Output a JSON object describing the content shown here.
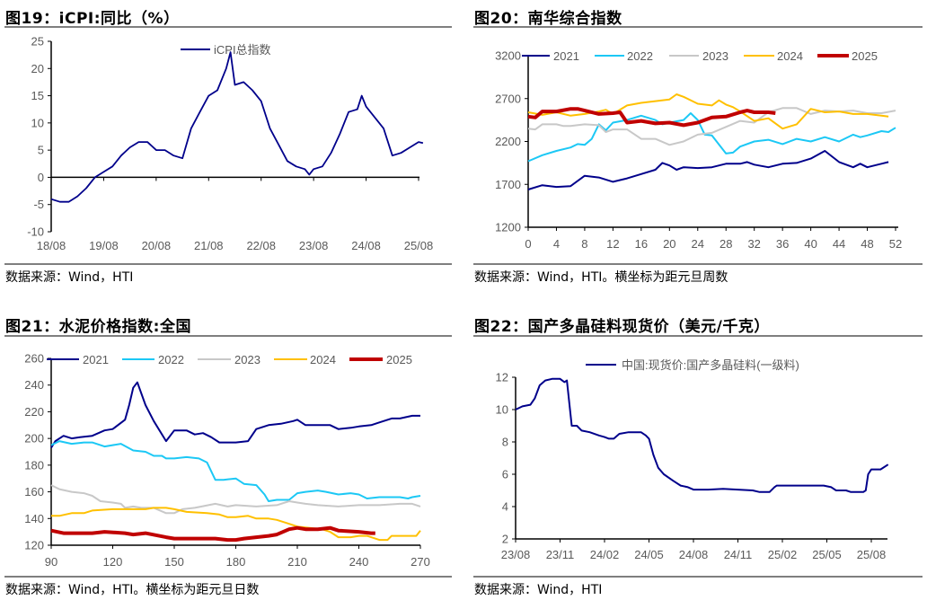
{
  "chart_data": [
    {
      "type": "line",
      "title": "图19：iCPI:同比（%）",
      "source": "数据来源：Wind，HTI",
      "ylim": [
        -10,
        25
      ],
      "yticks": [
        "25",
        "20",
        "15",
        "10",
        "5",
        "0",
        "-5",
        "-10"
      ],
      "xticks": [
        "18/08",
        "19/08",
        "20/08",
        "21/08",
        "22/08",
        "23/08",
        "24/08",
        "25/08"
      ],
      "legend_position": "top-center",
      "series": [
        {
          "name": "iCPI总指数",
          "color": "#00008B",
          "x": [
            "2018-08",
            "2018-10",
            "2018-12",
            "2019-02",
            "2019-04",
            "2019-06",
            "2019-08",
            "2019-10",
            "2019-12",
            "2020-02",
            "2020-04",
            "2020-06",
            "2020-08",
            "2020-10",
            "2020-12",
            "2021-02",
            "2021-04",
            "2021-06",
            "2021-08",
            "2021-10",
            "2021-12",
            "2022-01",
            "2022-02",
            "2022-04",
            "2022-06",
            "2022-08",
            "2022-10",
            "2022-12",
            "2023-02",
            "2023-04",
            "2023-06",
            "2023-07",
            "2023-08",
            "2023-10",
            "2023-12",
            "2024-02",
            "2024-04",
            "2024-06",
            "2024-07",
            "2024-08",
            "2024-10",
            "2024-12",
            "2025-02",
            "2025-04",
            "2025-06",
            "2025-08",
            "2025-09"
          ],
          "values": [
            -4,
            -4.5,
            -4.5,
            -3.5,
            -2,
            0,
            1,
            2,
            4,
            5.5,
            6.5,
            6.5,
            5,
            5,
            4,
            3.5,
            9,
            12,
            15,
            16,
            20,
            23,
            17,
            17.5,
            16,
            14,
            9,
            6,
            3,
            2,
            1.5,
            0.5,
            1.5,
            2,
            4.5,
            8,
            12,
            12.5,
            15,
            13,
            11,
            9,
            4,
            4.5,
            5.5,
            6.5,
            6.3
          ]
        }
      ]
    },
    {
      "type": "line",
      "title": "图20：南华综合指数",
      "source": "数据来源：Wind，HTI。横坐标为距元旦周数",
      "ylim": [
        1200,
        3200
      ],
      "yticks": [
        "3200",
        "2700",
        "2200",
        "1700",
        "1200"
      ],
      "xlim": [
        0,
        52
      ],
      "xticks": [
        "0",
        "4",
        "8",
        "12",
        "16",
        "20",
        "24",
        "28",
        "32",
        "36",
        "40",
        "44",
        "48",
        "52"
      ],
      "legend_position": "top",
      "series": [
        {
          "name": "2021",
          "color": "#00008B",
          "width": 2,
          "x": [
            0,
            2,
            4,
            6,
            8,
            10,
            12,
            14,
            16,
            18,
            19,
            20,
            21,
            22,
            24,
            26,
            28,
            30,
            31,
            32,
            34,
            36,
            38,
            40,
            42,
            44,
            46,
            47,
            48,
            50,
            51
          ],
          "values": [
            1640,
            1690,
            1670,
            1680,
            1800,
            1780,
            1730,
            1770,
            1820,
            1870,
            1950,
            1920,
            1870,
            1900,
            1890,
            1900,
            1940,
            1940,
            1960,
            1930,
            1900,
            1940,
            1950,
            2000,
            2090,
            1960,
            1900,
            1940,
            1900,
            1940,
            1960
          ]
        },
        {
          "name": "2022",
          "color": "#1CC8F5",
          "width": 2,
          "x": [
            0,
            2,
            4,
            6,
            7,
            8,
            9,
            10,
            11,
            12,
            14,
            16,
            18,
            19,
            20,
            22,
            23,
            24,
            25,
            26,
            28,
            29,
            30,
            32,
            34,
            36,
            38,
            40,
            42,
            44,
            46,
            47,
            48,
            50,
            51,
            52
          ],
          "values": [
            1970,
            2040,
            2090,
            2130,
            2170,
            2160,
            2230,
            2400,
            2330,
            2420,
            2450,
            2500,
            2450,
            2400,
            2420,
            2450,
            2530,
            2450,
            2280,
            2270,
            2060,
            2070,
            2140,
            2200,
            2220,
            2170,
            2230,
            2200,
            2250,
            2200,
            2280,
            2250,
            2270,
            2320,
            2310,
            2360
          ]
        },
        {
          "name": "2023",
          "color": "#C8C8C8",
          "width": 2,
          "x": [
            0,
            1,
            2,
            4,
            5,
            6,
            8,
            10,
            11,
            12,
            14,
            16,
            18,
            20,
            22,
            24,
            26,
            28,
            30,
            32,
            34,
            36,
            38,
            40,
            42,
            44,
            46,
            48,
            50,
            52
          ],
          "values": [
            2350,
            2340,
            2400,
            2400,
            2380,
            2380,
            2400,
            2390,
            2310,
            2340,
            2340,
            2230,
            2230,
            2160,
            2200,
            2280,
            2300,
            2370,
            2440,
            2420,
            2540,
            2590,
            2590,
            2520,
            2560,
            2550,
            2560,
            2530,
            2530,
            2560
          ]
        },
        {
          "name": "2024",
          "color": "#FFC000",
          "width": 2,
          "x": [
            0,
            2,
            4,
            6,
            8,
            10,
            11,
            12,
            14,
            16,
            18,
            20,
            21,
            22,
            24,
            26,
            27,
            28,
            29,
            30,
            32,
            34,
            36,
            38,
            40,
            42,
            44,
            46,
            48,
            50,
            51
          ],
          "values": [
            2540,
            2510,
            2540,
            2500,
            2520,
            2550,
            2570,
            2520,
            2620,
            2650,
            2670,
            2690,
            2750,
            2720,
            2640,
            2620,
            2680,
            2630,
            2600,
            2550,
            2440,
            2470,
            2350,
            2400,
            2580,
            2540,
            2550,
            2520,
            2520,
            2500,
            2490
          ]
        },
        {
          "name": "2025",
          "color": "#C00000",
          "width": 4,
          "x": [
            0,
            1,
            2,
            4,
            6,
            7,
            8,
            10,
            12,
            13,
            14,
            16,
            18,
            20,
            22,
            24,
            26,
            28,
            30,
            31,
            32,
            34,
            35
          ],
          "values": [
            2490,
            2480,
            2550,
            2550,
            2580,
            2580,
            2560,
            2520,
            2530,
            2540,
            2420,
            2440,
            2410,
            2420,
            2390,
            2420,
            2480,
            2490,
            2540,
            2560,
            2540,
            2540,
            2530
          ]
        }
      ]
    },
    {
      "type": "line",
      "title": "图21：水泥价格指数:全国",
      "source": "数据来源：Wind，HTI。横坐标为距元旦日数",
      "ylim": [
        120,
        260
      ],
      "yticks": [
        "260",
        "240",
        "220",
        "200",
        "180",
        "160",
        "140",
        "120"
      ],
      "xlim": [
        90,
        270
      ],
      "xticks": [
        "90",
        "120",
        "150",
        "180",
        "210",
        "240",
        "270"
      ],
      "legend_position": "top",
      "series": [
        {
          "name": "2021",
          "color": "#00008B",
          "width": 2,
          "x": [
            90,
            92,
            96,
            100,
            104,
            110,
            116,
            120,
            126,
            128,
            130,
            132,
            136,
            140,
            146,
            150,
            156,
            160,
            164,
            168,
            172,
            180,
            186,
            190,
            196,
            202,
            208,
            210,
            214,
            220,
            226,
            230,
            236,
            240,
            246,
            250,
            256,
            260,
            266,
            270
          ],
          "values": [
            193,
            198,
            202,
            200,
            201,
            202,
            206,
            207,
            214,
            225,
            238,
            242,
            225,
            213,
            198,
            206,
            206,
            203,
            204,
            201,
            197,
            197,
            198,
            207,
            210,
            211,
            213,
            214,
            210,
            210,
            210,
            207,
            208,
            209,
            210,
            212,
            215,
            215,
            217,
            217
          ]
        },
        {
          "name": "2022",
          "color": "#1CC8F5",
          "width": 2,
          "x": [
            90,
            94,
            100,
            106,
            110,
            116,
            124,
            130,
            136,
            140,
            144,
            146,
            150,
            156,
            162,
            166,
            170,
            174,
            180,
            184,
            190,
            194,
            196,
            200,
            206,
            210,
            214,
            220,
            224,
            230,
            236,
            240,
            244,
            250,
            256,
            260,
            264,
            266,
            270
          ],
          "values": [
            195,
            198,
            196,
            197,
            197,
            194,
            196,
            191,
            190,
            187,
            187,
            185,
            185,
            186,
            185,
            182,
            169,
            169,
            170,
            166,
            165,
            158,
            153,
            154,
            154,
            159,
            160,
            161,
            160,
            158,
            159,
            158,
            155,
            156,
            156,
            156,
            155,
            156,
            157
          ]
        },
        {
          "name": "2023",
          "color": "#C8C8C8",
          "width": 2,
          "x": [
            90,
            94,
            100,
            106,
            110,
            114,
            120,
            124,
            126,
            130,
            134,
            140,
            146,
            150,
            154,
            160,
            170,
            176,
            180,
            190,
            200,
            206,
            210,
            214,
            220,
            230,
            240,
            250,
            260,
            266,
            270
          ],
          "values": [
            165,
            162,
            160,
            159,
            157,
            153,
            152,
            151,
            148,
            149,
            148,
            148,
            144,
            144,
            147,
            148,
            151,
            149,
            150,
            149,
            150,
            153,
            152,
            151,
            150,
            149,
            150,
            150,
            151,
            151,
            149
          ]
        },
        {
          "name": "2024",
          "color": "#FFC000",
          "width": 2,
          "x": [
            90,
            94,
            100,
            106,
            110,
            120,
            126,
            130,
            136,
            140,
            146,
            150,
            156,
            166,
            172,
            176,
            180,
            186,
            190,
            196,
            200,
            206,
            210,
            216,
            222,
            226,
            230,
            236,
            240,
            244,
            250,
            254,
            256,
            260,
            264,
            268,
            270
          ],
          "values": [
            142,
            142,
            144,
            144,
            146,
            147,
            147,
            147,
            147,
            148,
            148,
            147,
            145,
            144,
            143,
            141,
            141,
            142,
            140,
            140,
            139,
            136,
            134,
            133,
            132,
            130,
            126,
            126,
            127,
            127,
            124,
            124,
            127,
            127,
            127,
            127,
            131
          ]
        },
        {
          "name": "2025",
          "color": "#C00000",
          "width": 4,
          "x": [
            90,
            96,
            104,
            110,
            116,
            126,
            130,
            136,
            146,
            150,
            160,
            170,
            176,
            180,
            184,
            190,
            196,
            200,
            206,
            210,
            214,
            220,
            226,
            230,
            240,
            246,
            248
          ],
          "values": [
            131,
            129,
            129,
            129,
            130,
            129,
            128,
            129,
            126,
            125,
            125,
            125,
            124,
            124,
            125,
            126,
            127,
            128,
            132,
            133,
            132,
            132,
            133,
            131,
            130,
            129,
            129
          ]
        }
      ]
    },
    {
      "type": "line",
      "title": "图22：国产多晶硅料现货价（美元/千克）",
      "source": "数据来源：Wind，HTI",
      "ylim": [
        2,
        12
      ],
      "yticks": [
        "12",
        "10",
        "8",
        "6",
        "4",
        "2"
      ],
      "xticks": [
        "23/08",
        "23/11",
        "24/02",
        "24/05",
        "24/08",
        "24/11",
        "25/02",
        "25/05",
        "25/08"
      ],
      "legend_position": "top-center",
      "series": [
        {
          "name": "中国:现货价:国产多晶硅料(一级料)",
          "color": "#00008B",
          "width": 2,
          "x": [
            "2023-08-01",
            "2023-08-15",
            "2023-09-01",
            "2023-09-10",
            "2023-09-20",
            "2023-10-01",
            "2023-10-15",
            "2023-11-01",
            "2023-11-10",
            "2023-11-15",
            "2023-11-25",
            "2023-12-05",
            "2023-12-15",
            "2024-01-01",
            "2024-01-20",
            "2024-02-01",
            "2024-02-10",
            "2024-02-20",
            "2024-03-01",
            "2024-03-20",
            "2024-04-15",
            "2024-04-25",
            "2024-05-01",
            "2024-05-10",
            "2024-05-20",
            "2024-06-01",
            "2024-06-20",
            "2024-07-05",
            "2024-07-20",
            "2024-08-01",
            "2024-09-01",
            "2024-10-01",
            "2024-11-01",
            "2024-12-01",
            "2024-12-15",
            "2025-01-05",
            "2025-01-15",
            "2025-01-20",
            "2025-03-01",
            "2025-04-01",
            "2025-04-25",
            "2025-05-10",
            "2025-05-20",
            "2025-06-10",
            "2025-06-20",
            "2025-07-15",
            "2025-07-20",
            "2025-07-25",
            "2025-08-01",
            "2025-08-20",
            "2025-09-05"
          ],
          "values": [
            10,
            10.2,
            10.3,
            10.7,
            11.5,
            11.8,
            11.9,
            11.9,
            11.7,
            11.8,
            9.0,
            9.0,
            8.7,
            8.6,
            8.4,
            8.3,
            8.2,
            8.2,
            8.5,
            8.6,
            8.6,
            8.4,
            8.2,
            7.2,
            6.4,
            6.0,
            5.6,
            5.3,
            5.2,
            5.05,
            5.05,
            5.1,
            5.05,
            5.0,
            4.9,
            4.9,
            5.2,
            5.3,
            5.3,
            5.3,
            5.3,
            5.2,
            5.0,
            5.0,
            4.9,
            4.9,
            5.0,
            6.0,
            6.3,
            6.3,
            6.6
          ]
        }
      ]
    }
  ]
}
